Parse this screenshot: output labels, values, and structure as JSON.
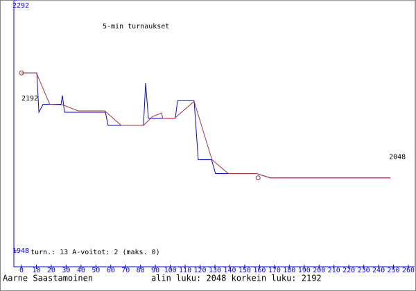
{
  "chart_data": {
    "type": "line",
    "title": "5-min turnaukset",
    "stats": "turn.: 13  A-voitot: 2   (maks. 0)",
    "author": "Aarne Saastamoinen",
    "summary": "alin luku: 2048  korkein luku: 2192",
    "annotations": [
      {
        "text": "2192",
        "x": 0,
        "y": 2157
      },
      {
        "text": "2048",
        "x": 247,
        "y": 2077
      }
    ],
    "markers": {
      "x": [
        0,
        159
      ],
      "y": [
        2192,
        2048
      ],
      "color": "#b03030"
    },
    "xlim": [
      0,
      260
    ],
    "xticks": [
      0,
      10,
      20,
      30,
      40,
      50,
      60,
      70,
      80,
      90,
      100,
      110,
      120,
      130,
      140,
      150,
      160,
      170,
      180,
      190,
      200,
      210,
      220,
      230,
      240,
      250,
      260
    ],
    "ylim": [
      1948,
      2292
    ],
    "yticks": [
      1948,
      2292
    ],
    "axis_color": "#0000ff",
    "series": [
      {
        "color": "#0000ff",
        "x": [
          0,
          10.3,
          11.7,
          14.5,
          26.6,
          27.5,
          28.9,
          56.4,
          58.2,
          82.0,
          83.4,
          85.3,
          103.4,
          104.9,
          116.0,
          118.8,
          127.7,
          130.4,
          158.0,
          167.3,
          247.9
        ],
        "values": [
          2192,
          2192,
          2138,
          2149,
          2149,
          2161,
          2138,
          2138,
          2120,
          2120,
          2178,
          2130,
          2130,
          2154,
          2154,
          2073,
          2073,
          2054,
          2054,
          2048,
          2048
        ]
      },
      {
        "color": "#b03030",
        "x": [
          0,
          10,
          19,
          28,
          38,
          56,
          67,
          82,
          88,
          94,
          95,
          103,
          116,
          128,
          139,
          158,
          167,
          248
        ],
        "values": [
          2192,
          2192,
          2149,
          2148,
          2140,
          2140,
          2120,
          2120,
          2132,
          2137,
          2130,
          2130,
          2153,
          2073,
          2054,
          2054,
          2048,
          2048
        ]
      }
    ]
  }
}
